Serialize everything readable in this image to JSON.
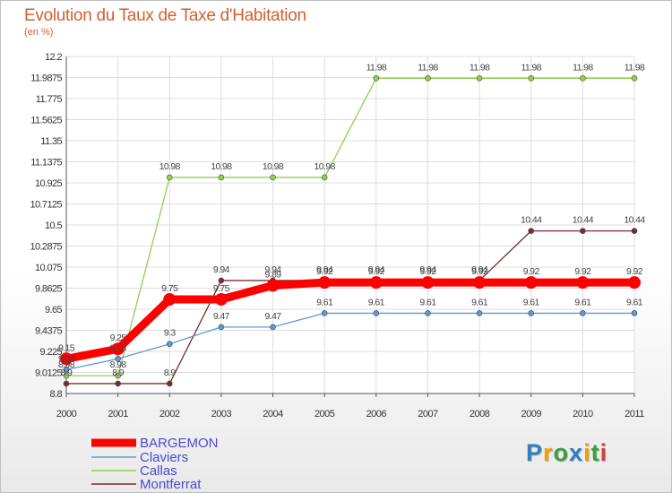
{
  "title": "Evolution du Taux de Taxe d'Habitation",
  "subtitle": "(en %)",
  "brand": {
    "letters": [
      "P",
      "r",
      "o",
      "x",
      "i",
      "t",
      "i"
    ],
    "colors": [
      "#2f7fc1",
      "#f0a000",
      "#3aa03a",
      "#2f7fc1",
      "#f0a000",
      "#3aa03a",
      "#d04040"
    ]
  },
  "chart_data": {
    "type": "line",
    "x": [
      "2000",
      "2001",
      "2002",
      "2003",
      "2004",
      "2005",
      "2006",
      "2007",
      "2008",
      "2009",
      "2010",
      "2011"
    ],
    "ylim": [
      8.8,
      12.2
    ],
    "yticks": [
      "8.8",
      "9.0125",
      "9.225",
      "9.4375",
      "9.65",
      "9.8625",
      "10.075",
      "10.2875",
      "10.5",
      "10.7125",
      "10.925",
      "11.1375",
      "11.35",
      "11.5625",
      "11.775",
      "11.9875",
      "12.2"
    ],
    "grid": true,
    "legend_position": "bottom-left",
    "series": [
      {
        "name": "BARGEMON",
        "color": "#ff0000",
        "values": [
          9.15,
          9.25,
          9.75,
          9.75,
          9.89,
          9.92,
          9.92,
          9.92,
          9.92,
          9.92,
          9.92,
          9.92
        ]
      },
      {
        "name": "Claviers",
        "color": "#5b9bd5",
        "values": [
          9.04,
          9.15,
          9.3,
          9.47,
          9.47,
          9.61,
          9.61,
          9.61,
          9.61,
          9.61,
          9.61,
          9.61
        ]
      },
      {
        "name": "Callas",
        "color": "#8fd14f",
        "values": [
          8.98,
          8.98,
          10.98,
          10.98,
          10.98,
          10.98,
          11.98,
          11.98,
          11.98,
          11.98,
          11.98,
          11.98
        ]
      },
      {
        "name": "Montferrat",
        "color": "#7b2c2c",
        "values": [
          8.9,
          8.9,
          8.9,
          9.94,
          9.94,
          9.94,
          9.94,
          9.94,
          9.94,
          10.44,
          10.44,
          10.44
        ]
      }
    ],
    "point_labels": [
      [
        "9.15",
        "9.25",
        "9.75",
        "9.75",
        "9.89",
        "9.92",
        "9.92",
        "9.92",
        "9.92",
        "9.92",
        "9.92",
        "9.92"
      ],
      [
        "9.04",
        "9.15",
        "9.3",
        "9.47",
        "9.47",
        "9.61",
        "9.61",
        "9.61",
        "9.61",
        "9.61",
        "9.61",
        "9.61"
      ],
      [
        "8.98",
        "8.98",
        "10.98",
        "10.98",
        "10.98",
        "10.98",
        "11.98",
        "11.98",
        "11.98",
        "11.98",
        "11.98",
        "11.98"
      ],
      [
        "8.9",
        "8.9",
        "8.9",
        "9.94",
        "9.94",
        "9.94",
        "9.94",
        "9.94",
        "9.94",
        "10.44",
        "10.44",
        "10.44"
      ]
    ]
  }
}
